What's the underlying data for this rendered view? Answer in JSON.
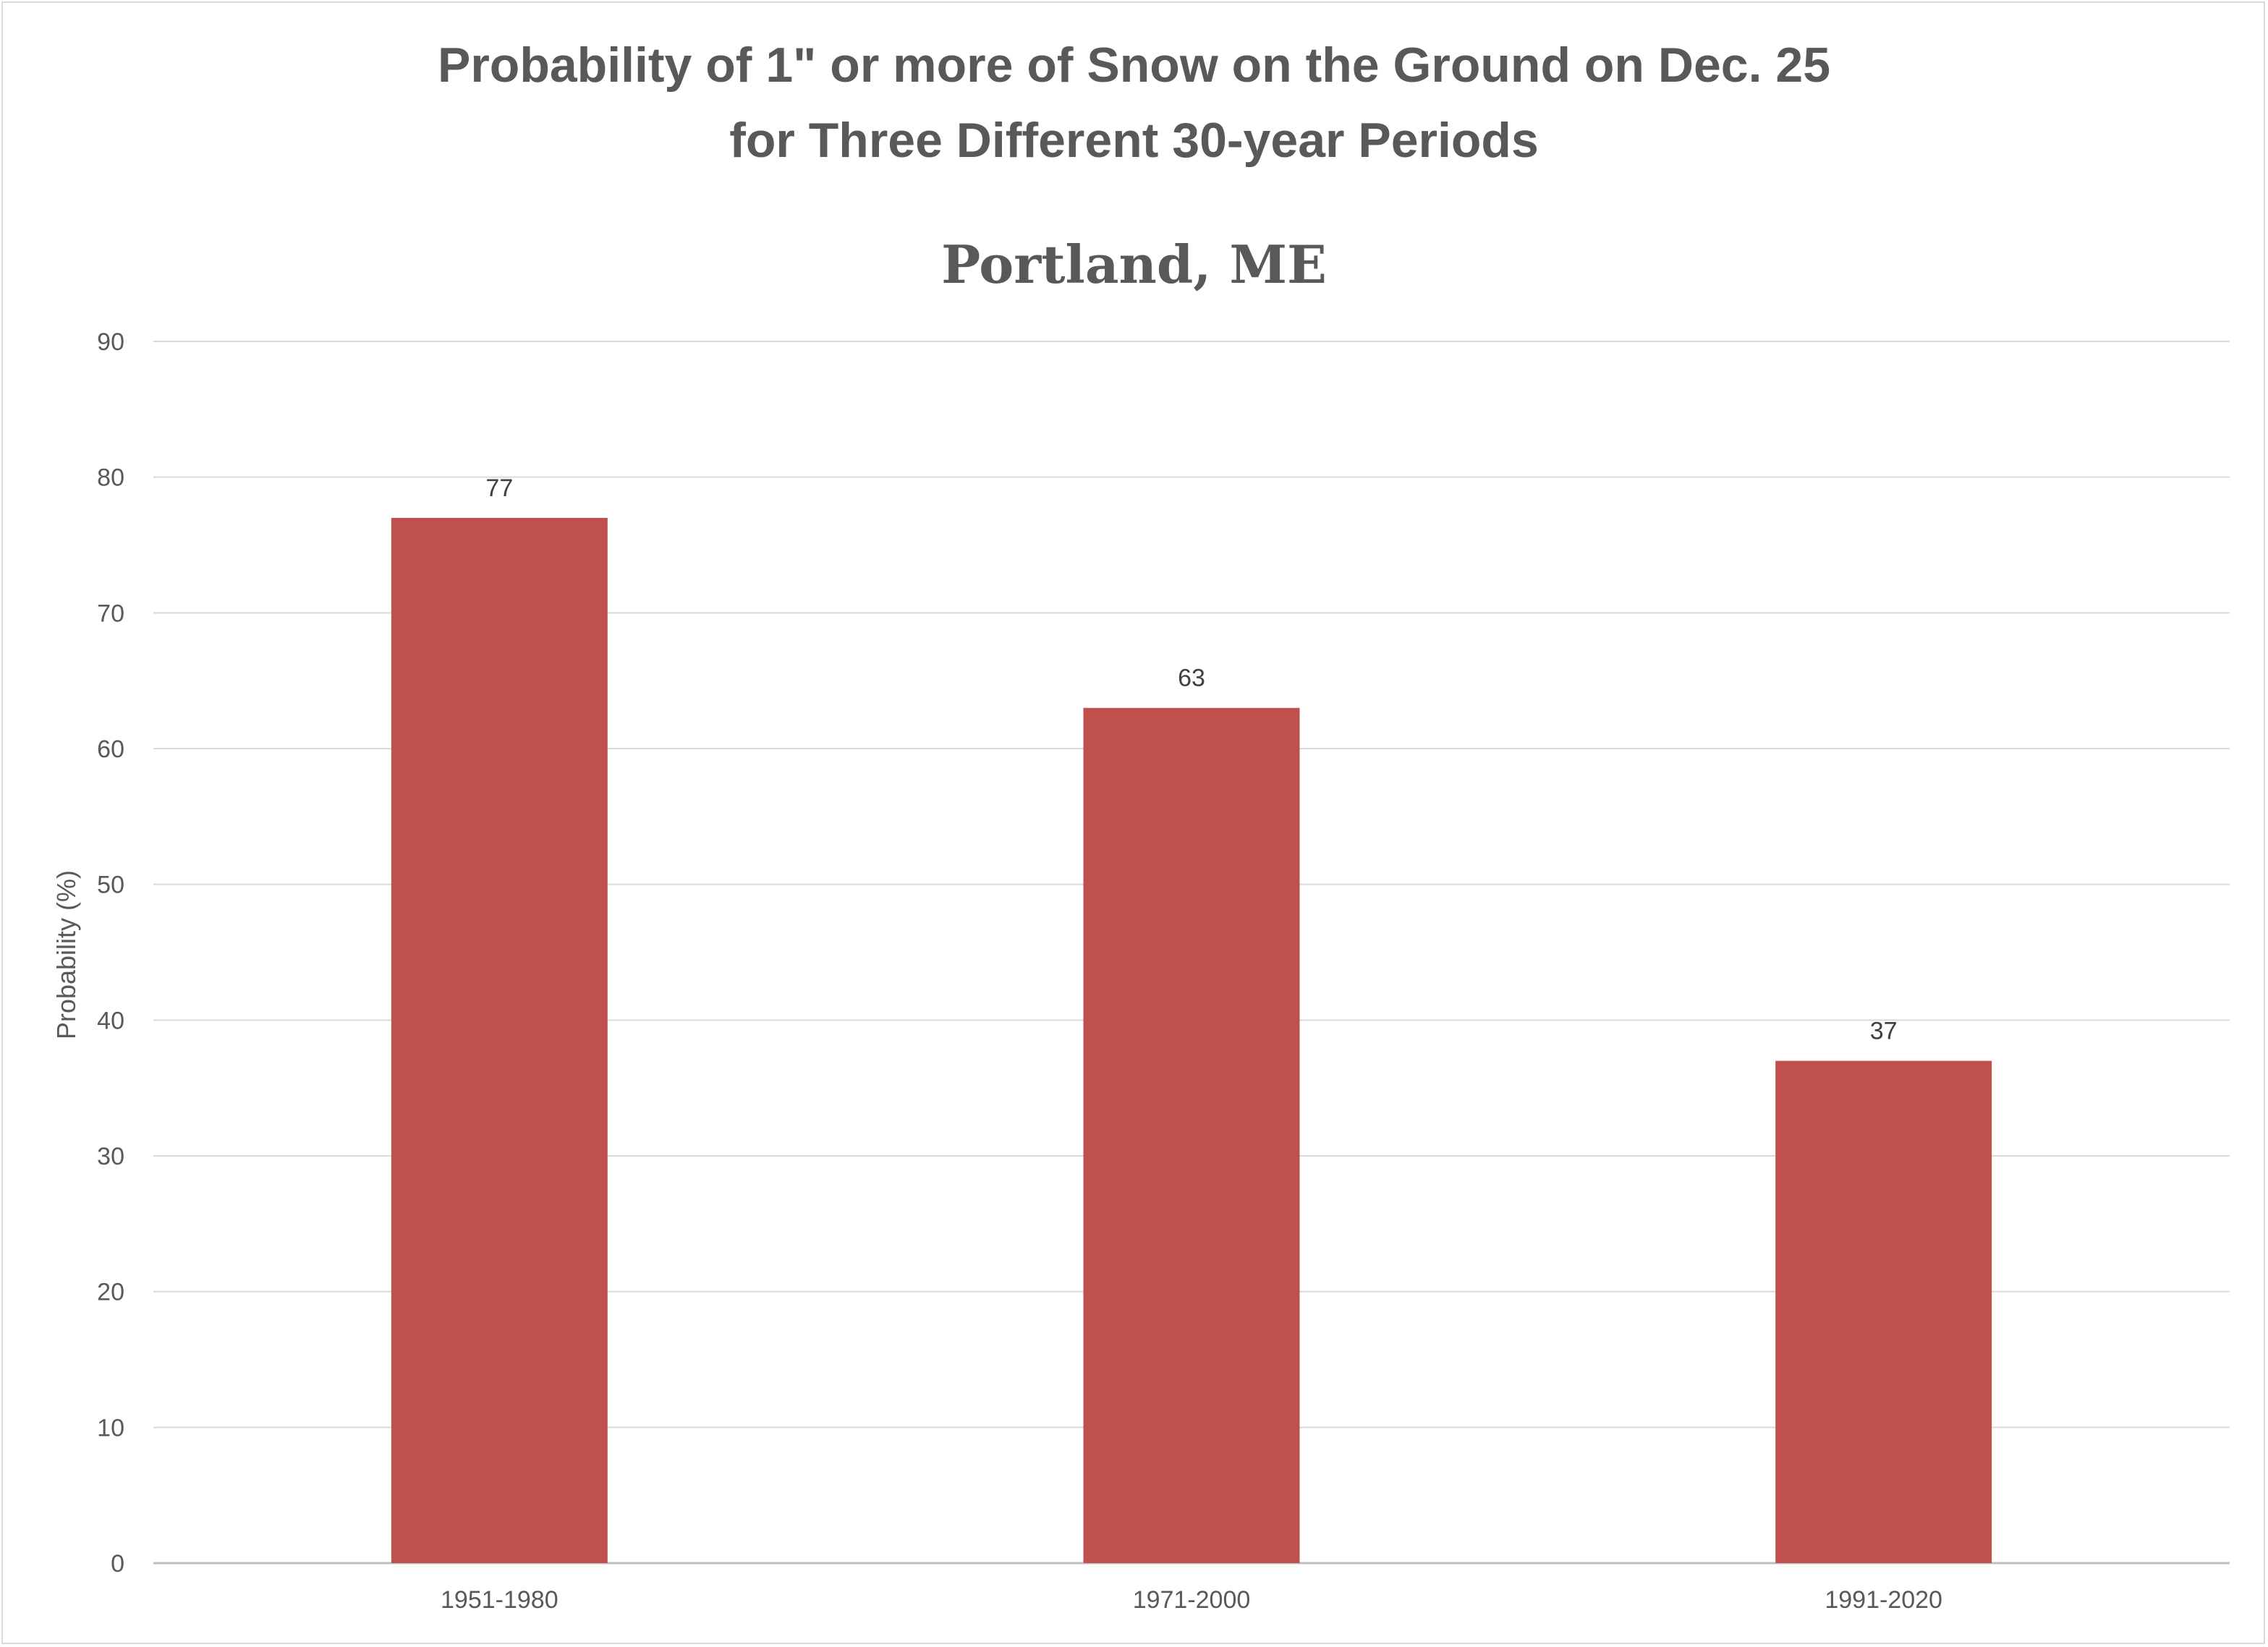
{
  "chart_data": {
    "type": "bar",
    "title": "Probability of 1\" or more of Snow on the Ground on Dec. 25",
    "title_line2": "for Three Different 30-year Periods",
    "subtitle": "Portland, ME",
    "xlabel": "",
    "ylabel": "Probability (%)",
    "categories": [
      "1951-1980",
      "1971-2000",
      "1991-2020"
    ],
    "values": [
      77,
      63,
      37
    ],
    "data_labels": [
      "77",
      "63",
      "37"
    ],
    "ylim": [
      0,
      90
    ],
    "yticks": [
      "0",
      "10",
      "20",
      "30",
      "40",
      "50",
      "60",
      "70",
      "80",
      "90"
    ],
    "grid": true,
    "legend": "none",
    "bar_color": "#c0504d"
  }
}
